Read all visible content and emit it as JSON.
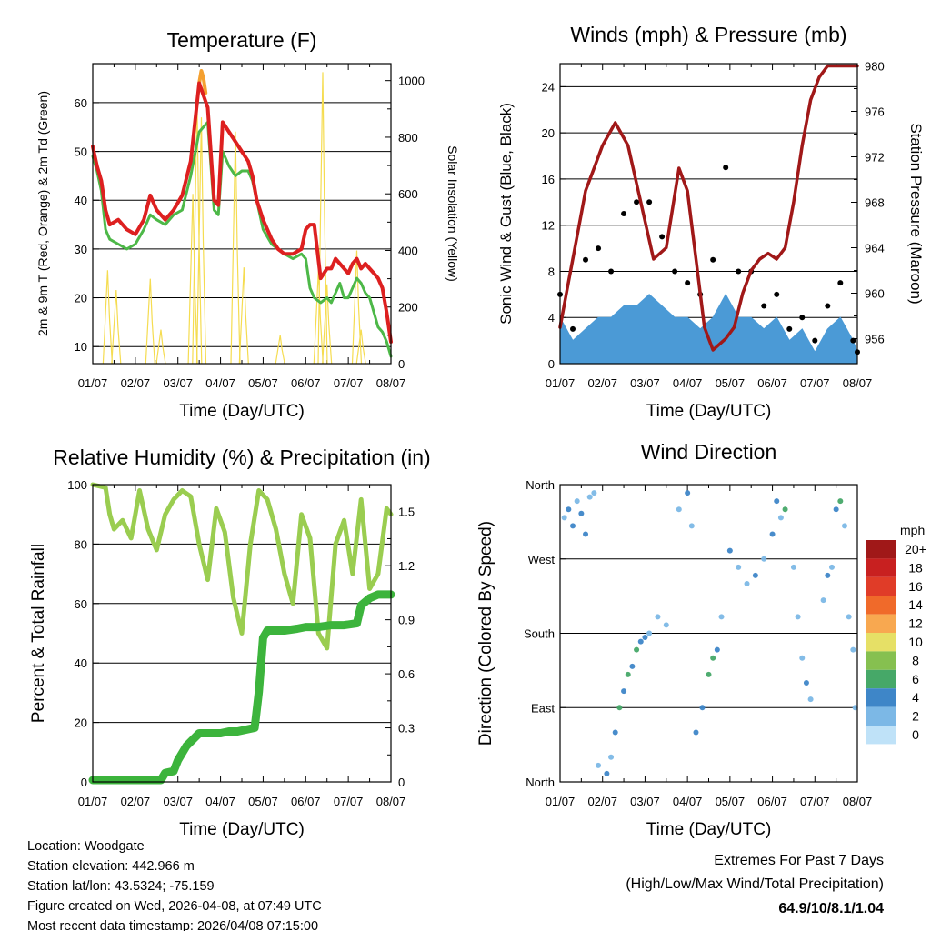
{
  "colors": {
    "temp": "#dd2020",
    "temp_upper": "#f4a030",
    "dewpoint": "#4db848",
    "solar": "#f5dc50",
    "wind": "#000000",
    "wind_sustained": "#4b9ad6",
    "pressure": "#a01818",
    "rh": "#9acd50",
    "precip": "#3cb43c",
    "extremes": "#d03030"
  },
  "chart_data": [
    {
      "id": "temperature",
      "type": "line",
      "title": "Temperature (F)",
      "xlabel": "Time (Day/UTC)",
      "ylabel": "2m & 9m T (Red, Orange) & 2m Td (Green)",
      "ylabel_right": "Solar Insolation (Yellow)",
      "x_ticks": [
        "01/07",
        "02/07",
        "03/07",
        "04/07",
        "05/07",
        "06/07",
        "07/07",
        "08/07"
      ],
      "xlim": [
        0,
        7
      ],
      "ylim": [
        6.5,
        68
      ],
      "y_ticks": [
        10,
        20,
        30,
        40,
        50,
        60
      ],
      "ylim_right": [
        0,
        1060
      ],
      "y_ticks_right": [
        0,
        200,
        400,
        600,
        800,
        1000
      ],
      "series": [
        {
          "name": "2m T",
          "color": "temp",
          "x": [
            0,
            0.1,
            0.2,
            0.3,
            0.4,
            0.6,
            0.8,
            1.0,
            1.2,
            1.35,
            1.5,
            1.7,
            1.9,
            2.1,
            2.3,
            2.5,
            2.7,
            2.85,
            2.95,
            3.05,
            3.2,
            3.35,
            3.5,
            3.65,
            3.75,
            3.85,
            4.0,
            4.2,
            4.35,
            4.5,
            4.7,
            4.9,
            5.0,
            5.1,
            5.2,
            5.35,
            5.5,
            5.6,
            5.7,
            5.8,
            5.9,
            6.0,
            6.1,
            6.2,
            6.3,
            6.4,
            6.5,
            6.6,
            6.7,
            6.8,
            6.9,
            7.0
          ],
          "y": [
            51,
            47,
            44,
            38,
            35,
            36,
            34,
            33,
            36,
            41,
            38,
            36,
            38,
            41,
            48,
            64,
            59,
            40,
            39,
            56,
            54,
            52,
            50,
            48,
            45,
            40,
            36,
            32,
            30,
            29,
            29,
            30,
            34,
            35,
            35,
            24,
            26,
            26,
            28,
            27,
            26,
            25,
            27,
            28,
            26,
            27,
            26,
            25,
            24,
            22,
            17,
            11
          ]
        },
        {
          "name": "9m T",
          "color": "temp_upper",
          "x": [
            2.5,
            2.55,
            2.6,
            2.65
          ],
          "y": [
            64,
            66.5,
            65,
            62
          ]
        },
        {
          "name": "2m Td",
          "color": "dewpoint",
          "x": [
            0,
            0.1,
            0.2,
            0.3,
            0.4,
            0.6,
            0.8,
            1.0,
            1.2,
            1.35,
            1.5,
            1.7,
            1.9,
            2.1,
            2.3,
            2.5,
            2.7,
            2.85,
            2.95,
            3.05,
            3.2,
            3.35,
            3.5,
            3.65,
            3.75,
            3.85,
            4.0,
            4.2,
            4.35,
            4.5,
            4.7,
            4.9,
            5.0,
            5.1,
            5.2,
            5.35,
            5.5,
            5.6,
            5.7,
            5.8,
            5.9,
            6.0,
            6.1,
            6.2,
            6.3,
            6.4,
            6.5,
            6.6,
            6.7,
            6.8,
            6.9,
            7.0
          ],
          "y": [
            49,
            46,
            42,
            34,
            32,
            31,
            30,
            31,
            34,
            37,
            36,
            35,
            37,
            38,
            45,
            54,
            56,
            38,
            37,
            50,
            47,
            45,
            46,
            46,
            44,
            40,
            34,
            31,
            30,
            29,
            28,
            29,
            28,
            22,
            20,
            19,
            20,
            19,
            21,
            23,
            20,
            20,
            22,
            24,
            23,
            21,
            20,
            17,
            14,
            13,
            11,
            8
          ]
        },
        {
          "name": "Solar Insolation",
          "color": "solar",
          "axis": "right",
          "peaks": [
            [
              0.35,
              330
            ],
            [
              0.55,
              260
            ],
            [
              1.35,
              300
            ],
            [
              1.6,
              120
            ],
            [
              2.35,
              600
            ],
            [
              2.45,
              930
            ],
            [
              2.55,
              870
            ],
            [
              3.35,
              820
            ],
            [
              3.55,
              340
            ],
            [
              4.4,
              100
            ],
            [
              5.3,
              330
            ],
            [
              5.4,
              1030
            ],
            [
              5.5,
              280
            ],
            [
              6.2,
              400
            ],
            [
              6.3,
              120
            ]
          ]
        }
      ]
    },
    {
      "id": "winds",
      "type": "line",
      "title": "Winds (mph) & Pressure (mb)",
      "xlabel": "Time (Day/UTC)",
      "ylabel": "Sonic Wind & Gust (Blue, Black)",
      "ylabel_right": "Station Pressure (Maroon)",
      "x_ticks": [
        "01/07",
        "02/07",
        "03/07",
        "04/07",
        "05/07",
        "06/07",
        "07/07",
        "08/07"
      ],
      "xlim": [
        0,
        7
      ],
      "ylim": [
        0,
        26
      ],
      "y_ticks": [
        0,
        4,
        8,
        12,
        16,
        20,
        24
      ],
      "ylim_right": [
        953.8,
        980.2
      ],
      "y_ticks_right": [
        956,
        960,
        964,
        968,
        972,
        976,
        980
      ],
      "series": [
        {
          "name": "Sustained Wind",
          "color": "wind_sustained",
          "x": [
            0,
            0.3,
            0.6,
            0.9,
            1.2,
            1.5,
            1.8,
            2.1,
            2.4,
            2.7,
            3.0,
            3.3,
            3.6,
            3.9,
            4.2,
            4.5,
            4.8,
            5.1,
            5.4,
            5.7,
            6.0,
            6.3,
            6.6,
            6.9,
            7.0
          ],
          "y": [
            4,
            2,
            3,
            4,
            4,
            5,
            5,
            6,
            5,
            4,
            4,
            3,
            4,
            6,
            4,
            4,
            3,
            4,
            2,
            3,
            1,
            3,
            4,
            2,
            1
          ]
        },
        {
          "name": "Gust",
          "color": "wind",
          "x": [
            0,
            0.3,
            0.6,
            0.9,
            1.2,
            1.5,
            1.8,
            2.1,
            2.4,
            2.7,
            3.0,
            3.3,
            3.6,
            3.9,
            4.2,
            4.5,
            4.8,
            5.1,
            5.4,
            5.7,
            6.0,
            6.3,
            6.6,
            6.9,
            7.0
          ],
          "y": [
            6,
            3,
            9,
            10,
            8,
            13,
            14,
            14,
            11,
            8,
            7,
            6,
            9,
            17,
            8,
            8,
            5,
            6,
            3,
            4,
            2,
            5,
            7,
            2,
            1
          ]
        },
        {
          "name": "Station Pressure",
          "color": "pressure",
          "axis": "right",
          "x": [
            0,
            0.2,
            0.4,
            0.6,
            0.8,
            1.0,
            1.3,
            1.6,
            1.9,
            2.2,
            2.5,
            2.8,
            3.0,
            3.2,
            3.4,
            3.6,
            3.9,
            4.1,
            4.3,
            4.5,
            4.7,
            4.9,
            5.1,
            5.3,
            5.5,
            5.7,
            5.9,
            6.1,
            6.3,
            6.5,
            6.7,
            6.9,
            7.0
          ],
          "y": [
            957,
            961,
            965,
            969,
            971,
            973,
            975,
            973,
            968,
            963,
            964,
            971,
            969,
            963,
            957,
            955,
            956,
            957,
            960,
            962,
            963,
            963.5,
            963,
            964,
            968,
            973,
            977,
            979,
            980,
            980,
            980,
            980,
            980
          ]
        }
      ]
    },
    {
      "id": "rh-precip",
      "type": "line",
      "title": "Relative Humidity (%) & Precipitation (in)",
      "xlabel": "Time (Day/UTC)",
      "ylabel": "Percent & Total Rainfall",
      "x_ticks": [
        "01/07",
        "02/07",
        "03/07",
        "04/07",
        "05/07",
        "06/07",
        "07/07",
        "08/07"
      ],
      "xlim": [
        0,
        7
      ],
      "ylim": [
        0,
        100
      ],
      "y_ticks": [
        0,
        20,
        40,
        60,
        80,
        100
      ],
      "ylim_right": [
        0,
        1.65
      ],
      "y_ticks_right": [
        0.0,
        0.3,
        0.6,
        0.9,
        1.2,
        1.5
      ],
      "series": [
        {
          "name": "Relative Humidity",
          "color": "rh",
          "x": [
            0,
            0.3,
            0.4,
            0.5,
            0.7,
            0.9,
            1.1,
            1.3,
            1.5,
            1.7,
            1.9,
            2.1,
            2.3,
            2.5,
            2.7,
            2.9,
            3.1,
            3.3,
            3.5,
            3.7,
            3.9,
            4.1,
            4.3,
            4.5,
            4.7,
            4.9,
            5.1,
            5.3,
            5.5,
            5.7,
            5.9,
            6.1,
            6.3,
            6.5,
            6.7,
            6.9,
            7.0
          ],
          "y": [
            100,
            99,
            90,
            85,
            88,
            82,
            98,
            85,
            78,
            90,
            95,
            98,
            96,
            80,
            68,
            92,
            84,
            62,
            50,
            80,
            98,
            95,
            85,
            70,
            60,
            90,
            82,
            50,
            45,
            80,
            88,
            70,
            95,
            65,
            70,
            92,
            90
          ]
        },
        {
          "name": "Total Rainfall",
          "color": "precip",
          "axis": "right",
          "x": [
            0,
            1.6,
            1.7,
            1.9,
            2.0,
            2.2,
            2.5,
            2.6,
            2.8,
            3.0,
            3.2,
            3.4,
            3.6,
            3.8,
            3.9,
            4.0,
            4.1,
            4.2,
            4.5,
            4.8,
            5.0,
            5.3,
            5.6,
            5.9,
            6.2,
            6.3,
            6.5,
            6.7,
            7.0
          ],
          "y": [
            0.01,
            0.01,
            0.05,
            0.06,
            0.12,
            0.2,
            0.27,
            0.27,
            0.27,
            0.27,
            0.28,
            0.28,
            0.29,
            0.3,
            0.5,
            0.8,
            0.84,
            0.84,
            0.84,
            0.85,
            0.86,
            0.86,
            0.87,
            0.87,
            0.88,
            0.98,
            1.02,
            1.04,
            1.04
          ]
        }
      ]
    },
    {
      "id": "wind-direction",
      "type": "scatter",
      "title": "Wind Direction",
      "xlabel": "Time (Day/UTC)",
      "ylabel": "Direction (Colored By Speed)",
      "x_ticks": [
        "01/07",
        "02/07",
        "03/07",
        "04/07",
        "05/07",
        "06/07",
        "07/07",
        "08/07"
      ],
      "xlim": [
        0,
        7
      ],
      "ylim": [
        0,
        360
      ],
      "y_ticks": [
        0,
        90,
        180,
        270,
        360
      ],
      "y_tick_labels": [
        "North",
        "East",
        "South",
        "West",
        "North"
      ],
      "points": [
        [
          0.1,
          320,
          2
        ],
        [
          0.2,
          330,
          4
        ],
        [
          0.3,
          310,
          4
        ],
        [
          0.4,
          340,
          2
        ],
        [
          0.5,
          325,
          4
        ],
        [
          0.6,
          300,
          4
        ],
        [
          0.7,
          345,
          2
        ],
        [
          0.8,
          350,
          2
        ],
        [
          0.9,
          20,
          1
        ],
        [
          1.1,
          10,
          4
        ],
        [
          1.2,
          30,
          2
        ],
        [
          1.3,
          60,
          4
        ],
        [
          1.4,
          90,
          6
        ],
        [
          1.5,
          110,
          4
        ],
        [
          1.6,
          130,
          6
        ],
        [
          1.7,
          140,
          4
        ],
        [
          1.8,
          160,
          6
        ],
        [
          1.9,
          170,
          4
        ],
        [
          2.0,
          175,
          4
        ],
        [
          2.1,
          180,
          2
        ],
        [
          2.3,
          200,
          2
        ],
        [
          2.5,
          190,
          1
        ],
        [
          2.8,
          330,
          2
        ],
        [
          3.0,
          350,
          4
        ],
        [
          3.1,
          310,
          2
        ],
        [
          3.2,
          60,
          4
        ],
        [
          3.35,
          90,
          4
        ],
        [
          3.5,
          130,
          6
        ],
        [
          3.6,
          150,
          6
        ],
        [
          3.7,
          160,
          4
        ],
        [
          3.8,
          200,
          2
        ],
        [
          4.0,
          280,
          4
        ],
        [
          4.2,
          260,
          2
        ],
        [
          4.4,
          240,
          2
        ],
        [
          4.6,
          250,
          4
        ],
        [
          4.8,
          270,
          2
        ],
        [
          5.0,
          300,
          4
        ],
        [
          5.1,
          340,
          4
        ],
        [
          5.2,
          320,
          2
        ],
        [
          5.3,
          330,
          6
        ],
        [
          5.5,
          260,
          2
        ],
        [
          5.6,
          200,
          1
        ],
        [
          5.7,
          150,
          2
        ],
        [
          5.8,
          120,
          4
        ],
        [
          5.9,
          100,
          2
        ],
        [
          6.2,
          220,
          2
        ],
        [
          6.3,
          250,
          4
        ],
        [
          6.4,
          260,
          2
        ],
        [
          6.5,
          330,
          4
        ],
        [
          6.6,
          340,
          6
        ],
        [
          6.7,
          310,
          2
        ],
        [
          6.8,
          200,
          1
        ],
        [
          6.9,
          160,
          1
        ],
        [
          6.95,
          90,
          2
        ]
      ]
    }
  ],
  "legend": {
    "unit": "mph",
    "levels": [
      "20+",
      "18",
      "16",
      "14",
      "12",
      "10",
      "8",
      "6",
      "4",
      "2",
      "0"
    ],
    "colors": [
      "#a01818",
      "#c82020",
      "#e03c28",
      "#f06a2a",
      "#f8a850",
      "#e6e066",
      "#86c050",
      "#46a868",
      "#3e86c8",
      "#7cb8e6",
      "#bfe2f8"
    ]
  },
  "footer": {
    "location": "Location: Woodgate",
    "elevation": "Station elevation: 442.966 m",
    "latlon": "Station lat/lon: 43.5324; -75.159",
    "created": "Figure created on Wed, 2026-04-08, at 07:49 UTC",
    "recent": "Most recent data timestamp: 2026/04/08 07:15:00"
  },
  "extremes": {
    "title": "Extremes For Past 7 Days",
    "subtitle": "(High/Low/Max Wind/Total Precipitation)",
    "values": "64.9/10/8.1/1.04"
  }
}
